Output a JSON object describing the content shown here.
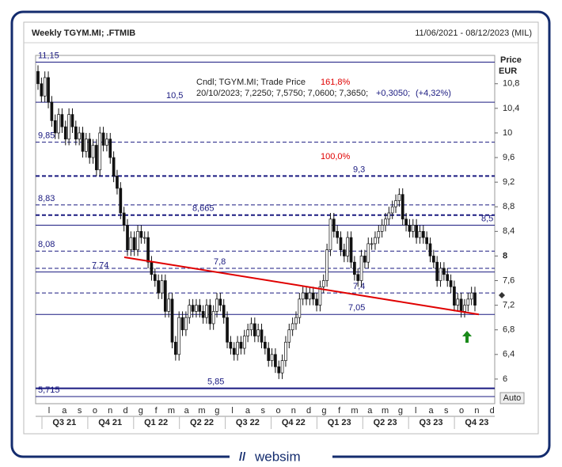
{
  "chart_data": {
    "type": "candlestick",
    "title": "Weekly TGYM.MI; .FTMIB",
    "date_range": "11/06/2021 - 08/12/2023 (MIL)",
    "price_label": "Price",
    "currency": "EUR",
    "autoscale_label": "Auto",
    "info_lines": [
      "Cndl; TGYM.MI; Trade Price",
      "20/10/2023; 7,2250; 7,5750; 7,0600; 7,3650;",
      "+0,3050;",
      "(+4,32%)"
    ],
    "fib_labels": [
      "161,8%",
      "100,0%"
    ],
    "brand": "websim",
    "ylim": [
      5.6,
      11.26
    ],
    "yticks": [
      6,
      {
        "value": 6.4,
        "label": "6,4"
      },
      {
        "value": 6.8,
        "label": "6,8"
      },
      {
        "value": 7.2,
        "label": "7,2"
      },
      {
        "value": 7.6,
        "label": "7,6"
      },
      8,
      {
        "value": 8.4,
        "label": "8,4"
      },
      {
        "value": 8.8,
        "label": "8,8"
      },
      {
        "value": 9.2,
        "label": "9,2"
      },
      {
        "value": 9.6,
        "label": "9,6"
      },
      10,
      {
        "value": 10.4,
        "label": "10,4"
      },
      {
        "value": 10.8,
        "label": "10,8"
      }
    ],
    "levels": [
      {
        "value": 11.15,
        "label": "11,15",
        "style": "solid"
      },
      {
        "value": 10.5,
        "label": "10,5",
        "style": "solid"
      },
      {
        "value": 9.85,
        "label": "9,85",
        "style": "dashed"
      },
      {
        "value": 9.3,
        "label": "9,3",
        "style": "bold-dashed"
      },
      {
        "value": 8.83,
        "label": "8,83",
        "style": "dashed"
      },
      {
        "value": 8.665,
        "label": "8,665",
        "style": "bold-dashed"
      },
      {
        "value": 8.5,
        "label": "8,5",
        "style": "solid"
      },
      {
        "value": 8.08,
        "label": "8,08",
        "style": "dashed"
      },
      {
        "value": 7.8,
        "label": "7,8",
        "style": "dashed"
      },
      {
        "value": 7.74,
        "label": "7,74",
        "style": "solid"
      },
      {
        "value": 7.4,
        "label": "7,4",
        "style": "dashed"
      },
      {
        "value": 7.05,
        "label": "7,05",
        "style": "solid"
      },
      {
        "value": 5.85,
        "label": "5,85",
        "style": "bold"
      },
      {
        "value": 5.715,
        "label": "5,715",
        "style": "solid"
      }
    ],
    "trendline": {
      "start": 7.98,
      "end": 7.05,
      "color": "#e00000"
    },
    "months": [
      "l",
      "a",
      "s",
      "o",
      "n",
      "d",
      "g",
      "f",
      "m",
      "a",
      "m",
      "g",
      "l",
      "a",
      "s",
      "o",
      "n",
      "d",
      "g",
      "f",
      "m",
      "a",
      "m",
      "g",
      "l",
      "a",
      "s",
      "o",
      "n",
      "d"
    ],
    "quarters": [
      "Q3 21",
      "Q4 21",
      "Q1 22",
      "Q2 22",
      "Q3 22",
      "Q4 22",
      "Q1 23",
      "Q2 23",
      "Q3 23",
      "Q4 23"
    ],
    "open": [
      11.0,
      10.8,
      10.6,
      10.9,
      10.5,
      10.2,
      10.0,
      10.3,
      10.1,
      9.9,
      10.3,
      10.1,
      9.9,
      10.0,
      9.7,
      9.9,
      9.6,
      9.8,
      9.4,
      10.0,
      9.8,
      9.9,
      9.6,
      9.3,
      9.1,
      8.7,
      8.5,
      8.1,
      8.3,
      8.1,
      8.4,
      8.3,
      8.3,
      7.9,
      7.7,
      7.6,
      7.4,
      7.6,
      7.1,
      7.3,
      6.6,
      6.4,
      7.0,
      6.8,
      7.0,
      7.2,
      7.1,
      7.2,
      7.1,
      7.0,
      7.2,
      6.9,
      7.1,
      7.3,
      7.2,
      7.0,
      6.6,
      6.5,
      6.4,
      6.6,
      6.5,
      6.7,
      6.8,
      6.9,
      6.7,
      6.8,
      6.6,
      6.5,
      6.3,
      6.4,
      6.2,
      6.1,
      6.3,
      6.6,
      6.8,
      6.9,
      7.0,
      7.3,
      7.4,
      7.3,
      7.4,
      7.3,
      7.2,
      7.5,
      7.6,
      8.1,
      8.6,
      8.4,
      8.3,
      8.1,
      8.0,
      8.3,
      7.9,
      7.7,
      7.6,
      8.0,
      7.9,
      8.2,
      8.2,
      8.3,
      8.4,
      8.5,
      8.6,
      8.7,
      8.8,
      8.9,
      9.0,
      8.6,
      8.5,
      8.4,
      8.5,
      8.3,
      8.4,
      8.3,
      8.2,
      8.0,
      7.9,
      7.6,
      7.8,
      7.7,
      7.6,
      7.5,
      7.2,
      7.3,
      7.1,
      7.2,
      7.3,
      7.4
    ],
    "high": [
      11.1,
      10.9,
      11.0,
      11.0,
      10.6,
      10.3,
      10.4,
      10.4,
      10.2,
      10.4,
      10.4,
      10.2,
      10.1,
      10.1,
      10.0,
      10.0,
      9.9,
      9.9,
      10.1,
      10.1,
      10.0,
      10.0,
      9.7,
      9.4,
      9.2,
      8.8,
      8.6,
      8.4,
      8.4,
      8.5,
      8.5,
      8.4,
      8.4,
      8.0,
      7.8,
      7.7,
      7.7,
      7.7,
      7.4,
      7.4,
      6.7,
      7.1,
      7.1,
      7.1,
      7.3,
      7.3,
      7.3,
      7.3,
      7.2,
      7.3,
      7.3,
      7.2,
      7.4,
      7.4,
      7.3,
      7.1,
      6.7,
      6.6,
      6.7,
      6.7,
      6.8,
      6.9,
      7.0,
      7.0,
      6.9,
      6.9,
      6.7,
      6.6,
      6.5,
      6.5,
      6.3,
      6.4,
      6.7,
      6.9,
      7.0,
      7.1,
      7.4,
      7.5,
      7.5,
      7.5,
      7.5,
      7.4,
      7.6,
      7.7,
      8.2,
      8.7,
      8.7,
      8.5,
      8.4,
      8.2,
      8.4,
      8.4,
      8.0,
      7.8,
      8.1,
      8.1,
      8.3,
      8.3,
      8.4,
      8.5,
      8.6,
      8.7,
      8.8,
      8.9,
      9.0,
      9.1,
      9.1,
      8.7,
      8.6,
      8.6,
      8.6,
      8.5,
      8.5,
      8.4,
      8.3,
      8.1,
      8.0,
      7.9,
      7.9,
      7.8,
      7.7,
      7.6,
      7.4,
      7.4,
      7.3,
      7.4,
      7.5,
      7.5
    ],
    "low": [
      10.7,
      10.5,
      10.5,
      10.4,
      10.1,
      9.9,
      9.9,
      10.0,
      9.8,
      9.8,
      10.0,
      9.8,
      9.8,
      9.6,
      9.6,
      9.5,
      9.5,
      9.3,
      9.3,
      9.7,
      9.7,
      9.5,
      9.2,
      9.0,
      8.6,
      8.4,
      8.0,
      8.0,
      8.0,
      8.0,
      8.2,
      8.2,
      7.8,
      7.6,
      7.5,
      7.3,
      7.3,
      7.0,
      7.0,
      6.5,
      6.3,
      6.3,
      6.7,
      6.7,
      6.9,
      7.0,
      7.0,
      7.0,
      6.9,
      6.9,
      6.8,
      6.8,
      7.0,
      7.1,
      6.9,
      6.5,
      6.4,
      6.3,
      6.3,
      6.4,
      6.4,
      6.6,
      6.7,
      6.6,
      6.6,
      6.5,
      6.4,
      6.2,
      6.2,
      6.1,
      6.0,
      6.0,
      6.2,
      6.5,
      6.7,
      6.8,
      6.9,
      7.2,
      7.2,
      7.2,
      7.2,
      7.1,
      7.1,
      7.4,
      7.5,
      8.0,
      8.3,
      8.2,
      8.0,
      7.9,
      7.9,
      7.8,
      7.6,
      7.5,
      7.5,
      7.8,
      7.8,
      8.1,
      8.1,
      8.2,
      8.3,
      8.4,
      8.5,
      8.6,
      8.7,
      8.8,
      8.5,
      8.4,
      8.3,
      8.3,
      8.2,
      8.2,
      8.2,
      8.1,
      7.9,
      7.8,
      7.5,
      7.5,
      7.6,
      7.5,
      7.4,
      7.1,
      7.1,
      7.0,
      7.0,
      7.1,
      7.2,
      7.1
    ],
    "close": [
      10.8,
      10.6,
      10.9,
      10.5,
      10.2,
      10.0,
      10.3,
      10.1,
      9.9,
      10.3,
      10.1,
      9.9,
      10.0,
      9.7,
      9.9,
      9.6,
      9.8,
      9.4,
      10.0,
      9.8,
      9.9,
      9.6,
      9.3,
      9.1,
      8.7,
      8.5,
      8.1,
      8.3,
      8.1,
      8.4,
      8.3,
      8.3,
      7.9,
      7.7,
      7.6,
      7.4,
      7.6,
      7.1,
      7.3,
      6.6,
      6.4,
      7.0,
      6.8,
      7.0,
      7.2,
      7.1,
      7.2,
      7.1,
      7.0,
      7.2,
      6.9,
      7.1,
      7.3,
      7.2,
      7.0,
      6.6,
      6.5,
      6.4,
      6.6,
      6.5,
      6.7,
      6.8,
      6.9,
      6.7,
      6.8,
      6.6,
      6.5,
      6.3,
      6.4,
      6.2,
      6.1,
      6.3,
      6.6,
      6.8,
      6.9,
      7.0,
      7.3,
      7.4,
      7.3,
      7.4,
      7.3,
      7.2,
      7.5,
      7.6,
      8.1,
      8.6,
      8.4,
      8.3,
      8.1,
      8.0,
      8.3,
      7.9,
      7.7,
      7.6,
      8.0,
      7.9,
      8.2,
      8.2,
      8.3,
      8.4,
      8.5,
      8.6,
      8.7,
      8.8,
      8.9,
      9.0,
      8.6,
      8.5,
      8.4,
      8.5,
      8.3,
      8.4,
      8.3,
      8.2,
      8.0,
      7.9,
      7.6,
      7.8,
      7.7,
      7.6,
      7.5,
      7.2,
      7.3,
      7.1,
      7.2,
      7.3,
      7.4,
      7.2
    ]
  }
}
